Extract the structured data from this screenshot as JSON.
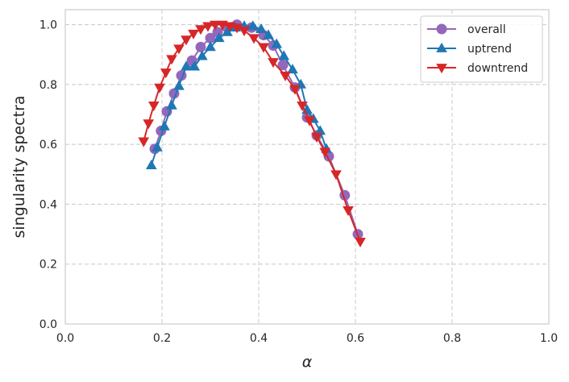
{
  "chart_data": {
    "type": "line",
    "xlabel": "α",
    "ylabel": "singularity spectra",
    "xlim": [
      0.0,
      1.0
    ],
    "ylim": [
      0.0,
      1.05
    ],
    "xticks": [
      "0.0",
      "0.2",
      "0.4",
      "0.6",
      "0.8",
      "1.0"
    ],
    "yticks": [
      "0.0",
      "0.2",
      "0.4",
      "0.6",
      "0.8",
      "1.0"
    ],
    "grid": true,
    "legend_position": "top-right",
    "series": [
      {
        "name": "overall",
        "color": "#9467bd",
        "marker": "circle",
        "x": [
          0.185,
          0.198,
          0.21,
          0.225,
          0.24,
          0.262,
          0.28,
          0.3,
          0.315,
          0.335,
          0.355,
          0.385,
          0.41,
          0.43,
          0.45,
          0.475,
          0.5,
          0.52,
          0.545,
          0.578,
          0.605
        ],
        "y": [
          0.585,
          0.645,
          0.71,
          0.77,
          0.83,
          0.88,
          0.925,
          0.955,
          0.975,
          0.99,
          1.0,
          0.99,
          0.965,
          0.93,
          0.865,
          0.79,
          0.69,
          0.63,
          0.56,
          0.43,
          0.3
        ]
      },
      {
        "name": "uptrend",
        "color": "#1f77b4",
        "marker": "triangle-up",
        "x": [
          0.178,
          0.19,
          0.205,
          0.22,
          0.235,
          0.25,
          0.267,
          0.283,
          0.3,
          0.318,
          0.335,
          0.352,
          0.37,
          0.388,
          0.405,
          0.42,
          0.437,
          0.452,
          0.47,
          0.487,
          0.5,
          0.513,
          0.527,
          0.54
        ],
        "y": [
          0.53,
          0.59,
          0.66,
          0.73,
          0.795,
          0.86,
          0.86,
          0.895,
          0.925,
          0.955,
          0.975,
          0.99,
          0.995,
          0.995,
          0.985,
          0.965,
          0.935,
          0.895,
          0.85,
          0.8,
          0.715,
          0.685,
          0.645,
          0.585
        ]
      },
      {
        "name": "downtrend",
        "color": "#d62728",
        "marker": "triangle-down",
        "x": [
          0.162,
          0.172,
          0.183,
          0.195,
          0.208,
          0.22,
          0.235,
          0.25,
          0.265,
          0.28,
          0.295,
          0.31,
          0.325,
          0.34,
          0.355,
          0.37,
          0.39,
          0.41,
          0.43,
          0.455,
          0.475,
          0.49,
          0.505,
          0.52,
          0.537,
          0.56,
          0.585,
          0.61
        ],
        "y": [
          0.61,
          0.67,
          0.73,
          0.79,
          0.84,
          0.885,
          0.92,
          0.95,
          0.97,
          0.985,
          0.995,
          1.0,
          1.0,
          0.995,
          0.99,
          0.98,
          0.955,
          0.925,
          0.875,
          0.83,
          0.785,
          0.73,
          0.68,
          0.625,
          0.575,
          0.5,
          0.38,
          0.275
        ]
      }
    ]
  }
}
